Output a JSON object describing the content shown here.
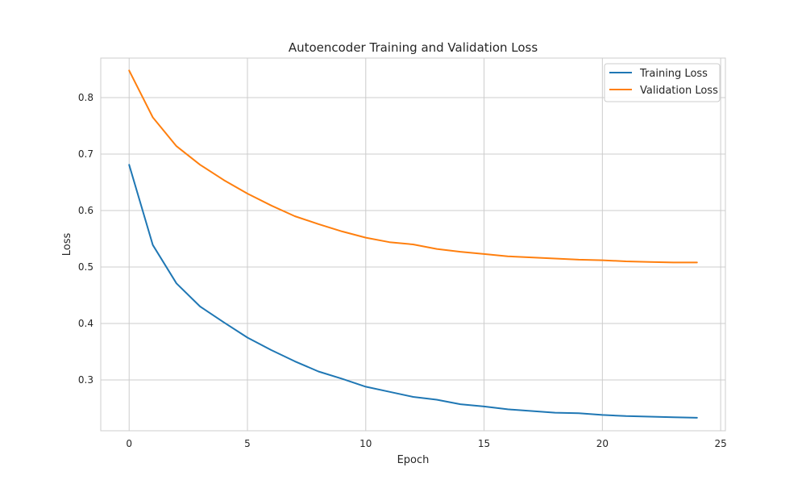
{
  "chart_data": {
    "type": "line",
    "title": "Autoencoder Training and Validation Loss",
    "xlabel": "Epoch",
    "ylabel": "Loss",
    "xlim": [
      -1.2,
      25.2
    ],
    "ylim": [
      0.21,
      0.87
    ],
    "xticks": [
      0,
      5,
      10,
      15,
      20,
      25
    ],
    "yticks": [
      0.3,
      0.4,
      0.5,
      0.6,
      0.7,
      0.8
    ],
    "grid": true,
    "legend_position": "top-right",
    "x": [
      0,
      1,
      2,
      3,
      4,
      5,
      6,
      7,
      8,
      9,
      10,
      11,
      12,
      13,
      14,
      15,
      16,
      17,
      18,
      19,
      20,
      21,
      22,
      23,
      24
    ],
    "series": [
      {
        "name": "Training Loss",
        "color": "#1f77b4",
        "values": [
          0.681,
          0.539,
          0.471,
          0.43,
          0.402,
          0.375,
          0.353,
          0.333,
          0.315,
          0.302,
          0.288,
          0.279,
          0.27,
          0.265,
          0.257,
          0.253,
          0.248,
          0.245,
          0.242,
          0.241,
          0.238,
          0.236,
          0.235,
          0.234,
          0.233
        ]
      },
      {
        "name": "Validation Loss",
        "color": "#ff7f0e",
        "values": [
          0.848,
          0.765,
          0.714,
          0.681,
          0.654,
          0.63,
          0.609,
          0.59,
          0.576,
          0.563,
          0.552,
          0.544,
          0.54,
          0.532,
          0.527,
          0.523,
          0.519,
          0.517,
          0.515,
          0.513,
          0.512,
          0.51,
          0.509,
          0.508,
          0.508
        ]
      }
    ]
  }
}
